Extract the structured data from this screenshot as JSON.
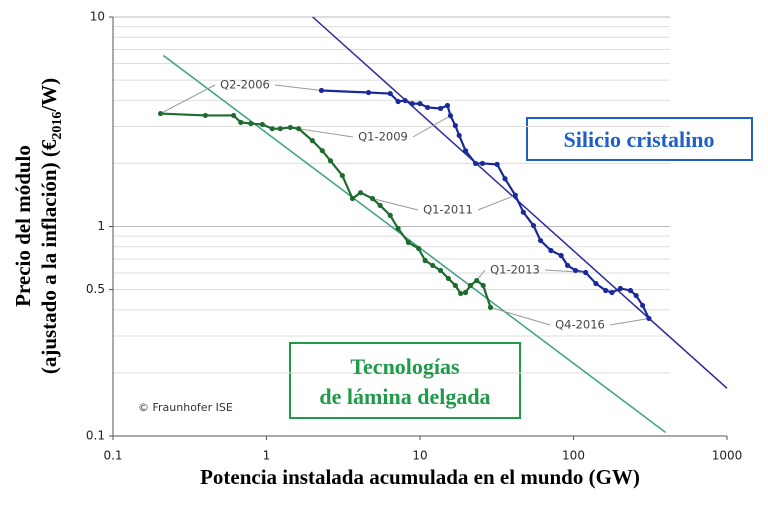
{
  "chart_data": {
    "type": "scatter-line",
    "log_x": true,
    "log_y": true,
    "x_label": "Potencia instalada acumulada en el mundo (GW)",
    "y_label": [
      "Precio del módulo",
      "(ajustado a la inflación) (€",
      "2016",
      "/W)"
    ],
    "xlim": [
      0.1,
      1000
    ],
    "xticks": [
      0.1,
      1,
      10,
      100,
      1000
    ],
    "ylim": [
      0.1,
      10
    ],
    "yticks": [
      0.1,
      0.5,
      1,
      10
    ],
    "y_grid": [
      0.2,
      0.3,
      0.4,
      0.5,
      0.6,
      0.7,
      0.8,
      0.9,
      1,
      2,
      3,
      4,
      5,
      6,
      7,
      8,
      9,
      10
    ],
    "credit": "© Fraunhofer ISE",
    "series": [
      {
        "name": "Silicio cristalino",
        "color": "#1a2a9a",
        "label_color": "#1f5fc8",
        "x": [
          2.28,
          4.62,
          6.4,
          7.2,
          8.0,
          8.9,
          10,
          11.2,
          13.6,
          15.1,
          15.8,
          17.0,
          18.0,
          19.8,
          23.0,
          25.5,
          31.8,
          35.8,
          41.8,
          47.1,
          54.9,
          61.0,
          71.3,
          83,
          91.5,
          103,
          120,
          140,
          162,
          178,
          202,
          235,
          256,
          282,
          310
        ],
        "values": [
          4.46,
          4.36,
          4.31,
          3.95,
          3.99,
          3.86,
          3.86,
          3.7,
          3.66,
          3.78,
          3.38,
          3.03,
          2.72,
          2.3,
          2.0,
          2.0,
          1.98,
          1.69,
          1.41,
          1.17,
          1.01,
          0.857,
          0.768,
          0.727,
          0.652,
          0.617,
          0.603,
          0.534,
          0.495,
          0.484,
          0.506,
          0.495,
          0.468,
          0.42,
          0.364
        ]
      },
      {
        "name": [
          "Tecnologías",
          "de lámina delgada"
        ],
        "color": "#1e6b2e",
        "label_color": "#1f9a4a",
        "x": [
          0.204,
          0.4,
          0.61,
          0.68,
          0.79,
          0.94,
          1.09,
          1.23,
          1.43,
          1.62,
          1.99,
          2.31,
          2.61,
          3.12,
          3.63,
          4.1,
          4.9,
          5.5,
          6.4,
          7.2,
          8.4,
          9.8,
          10.8,
          12.1,
          13.6,
          15.3,
          17.0,
          18.4,
          19.8,
          21.3,
          23.4,
          25.8,
          28.8
        ],
        "values": [
          3.46,
          3.39,
          3.39,
          3.14,
          3.1,
          3.07,
          2.93,
          2.93,
          2.97,
          2.93,
          2.57,
          2.3,
          2.06,
          1.75,
          1.36,
          1.45,
          1.36,
          1.26,
          1.13,
          0.978,
          0.839,
          0.785,
          0.688,
          0.652,
          0.617,
          0.565,
          0.523,
          0.479,
          0.484,
          0.523,
          0.552,
          0.523,
          0.411
        ]
      }
    ],
    "trendlines": [
      {
        "color": "#2a2a9a",
        "x": [
          2.0,
          1000
        ],
        "values": [
          10,
          0.169
        ]
      },
      {
        "color": "#3aa080",
        "x": [
          0.213,
          398
        ],
        "values": [
          6.55,
          0.104
        ]
      }
    ],
    "annotations": [
      "Q2-2006",
      "Q1-2009",
      "Q1-2011",
      "Q1-2013",
      "Q4-2016"
    ]
  }
}
